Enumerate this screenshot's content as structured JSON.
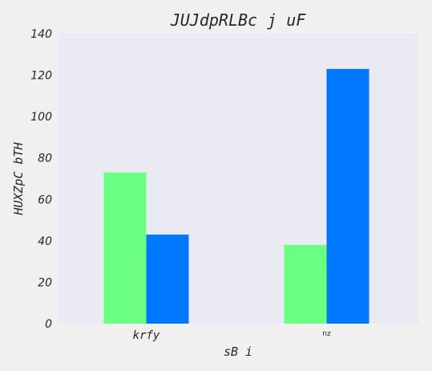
{
  "chart_data": {
    "type": "bar",
    "title": "JUJdpRLBc j uF",
    "xlabel": "sB i",
    "ylabel": "HUXZpC bTH",
    "categories": [
      "krfy",
      "nz"
    ],
    "series": [
      {
        "values": [
          73,
          38
        ],
        "color": "#6bff82"
      },
      {
        "values": [
          43,
          123
        ],
        "color": "#0077ff"
      }
    ],
    "ylim": [
      0,
      140
    ],
    "yticks": [
      0,
      20,
      40,
      60,
      80,
      100,
      120,
      140
    ],
    "yticks_labels": [
      "0",
      "20",
      "40",
      "60",
      "80",
      "100",
      "120",
      "140"
    ],
    "grid": false,
    "legend": "none",
    "plot_background": "#eaeaf2",
    "figure_background": "#f0f0f0"
  }
}
